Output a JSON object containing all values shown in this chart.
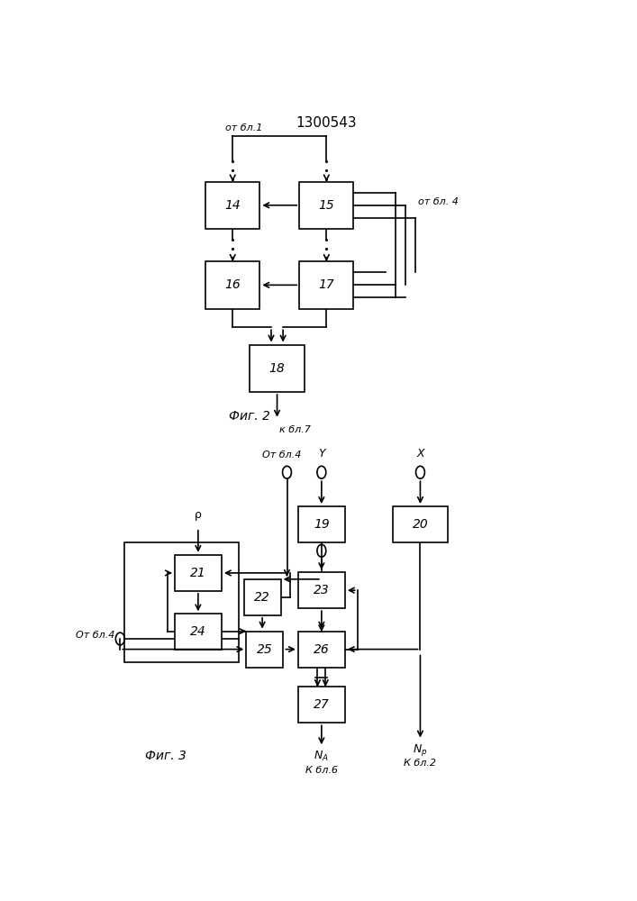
{
  "title": "1300543",
  "fig2_label": "Фиг. 2",
  "fig3_label": "Фиг. 3",
  "bg": "#ffffff",
  "lw": 1.2,
  "fig2": {
    "b14": [
      0.31,
      0.86,
      0.11,
      0.068
    ],
    "b15": [
      0.5,
      0.86,
      0.11,
      0.068
    ],
    "b16": [
      0.31,
      0.745,
      0.11,
      0.068
    ],
    "b17": [
      0.5,
      0.745,
      0.11,
      0.068
    ],
    "b18": [
      0.4,
      0.625,
      0.11,
      0.068
    ]
  },
  "fig3": {
    "b19": [
      0.49,
      0.4,
      0.095,
      0.052
    ],
    "b20": [
      0.69,
      0.4,
      0.11,
      0.052
    ],
    "b21": [
      0.24,
      0.33,
      0.095,
      0.052
    ],
    "b22": [
      0.37,
      0.295,
      0.075,
      0.052
    ],
    "b23": [
      0.49,
      0.305,
      0.095,
      0.052
    ],
    "b24": [
      0.24,
      0.245,
      0.095,
      0.052
    ],
    "b25": [
      0.375,
      0.22,
      0.075,
      0.052
    ],
    "b26": [
      0.49,
      0.22,
      0.095,
      0.052
    ],
    "b27": [
      0.49,
      0.14,
      0.095,
      0.052
    ]
  }
}
